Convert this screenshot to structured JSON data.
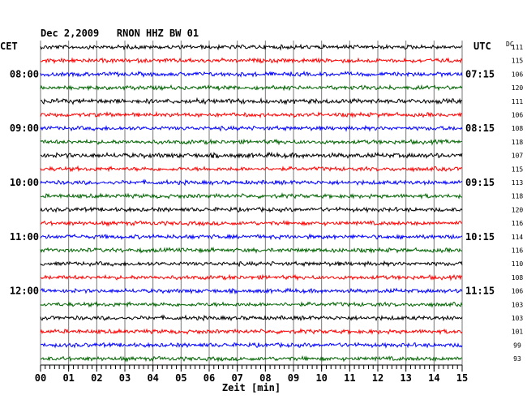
{
  "chart_data": {
    "type": "line",
    "title": "Dec 2,2009   RNON HHZ BW 01",
    "left_axis_label": "CET",
    "right_axis_label": "UTC",
    "dc_label": "DC",
    "xlabel": "Zeit [min]",
    "x_ticks": [
      "00",
      "01",
      "02",
      "03",
      "04",
      "05",
      "06",
      "07",
      "08",
      "09",
      "10",
      "11",
      "12",
      "13",
      "14",
      "15"
    ],
    "xlim": [
      0,
      15
    ],
    "grid": true,
    "left_hour_labels": [
      {
        "row": 2,
        "text": "08:00"
      },
      {
        "row": 6,
        "text": "09:00"
      },
      {
        "row": 10,
        "text": "10:00"
      },
      {
        "row": 14,
        "text": "11:00"
      },
      {
        "row": 18,
        "text": "12:00"
      }
    ],
    "right_hour_labels": [
      {
        "row": 2,
        "text": "07:15"
      },
      {
        "row": 6,
        "text": "08:15"
      },
      {
        "row": 10,
        "text": "09:15"
      },
      {
        "row": 14,
        "text": "10:15"
      },
      {
        "row": 18,
        "text": "11:15"
      }
    ],
    "trace_colors": [
      "#000000",
      "#ff0000",
      "#0000ff",
      "#006400"
    ],
    "series": [
      {
        "dc": 111,
        "amplitude": 3
      },
      {
        "dc": 115,
        "amplitude": 3
      },
      {
        "dc": 106,
        "amplitude": 3
      },
      {
        "dc": 120,
        "amplitude": 3
      },
      {
        "dc": 111,
        "amplitude": 3.5
      },
      {
        "dc": 106,
        "amplitude": 3
      },
      {
        "dc": 108,
        "amplitude": 3
      },
      {
        "dc": 118,
        "amplitude": 3
      },
      {
        "dc": 107,
        "amplitude": 3.5
      },
      {
        "dc": 115,
        "amplitude": 3
      },
      {
        "dc": 113,
        "amplitude": 3
      },
      {
        "dc": 118,
        "amplitude": 3
      },
      {
        "dc": 120,
        "amplitude": 3
      },
      {
        "dc": 116,
        "amplitude": 3
      },
      {
        "dc": 114,
        "amplitude": 3
      },
      {
        "dc": 116,
        "amplitude": 3
      },
      {
        "dc": 110,
        "amplitude": 3
      },
      {
        "dc": 108,
        "amplitude": 3
      },
      {
        "dc": 106,
        "amplitude": 3
      },
      {
        "dc": 103,
        "amplitude": 3
      },
      {
        "dc": 103,
        "amplitude": 3
      },
      {
        "dc": 101,
        "amplitude": 3
      },
      {
        "dc": 99,
        "amplitude": 3
      },
      {
        "dc": 93,
        "amplitude": 3
      }
    ]
  }
}
